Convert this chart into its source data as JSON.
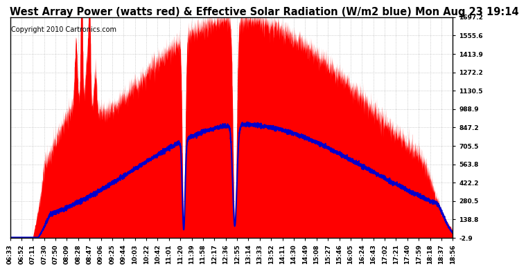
{
  "title": "West Array Power (watts red) & Effective Solar Radiation (W/m2 blue) Mon Aug 23 19:14",
  "copyright": "Copyright 2010 Cartronics.com",
  "background_color": "#ffffff",
  "plot_bg_color": "#ffffff",
  "grid_color": "#bbbbbb",
  "ylim": [
    -2.9,
    1697.2
  ],
  "yticks": [
    1697.2,
    1555.6,
    1413.9,
    1272.2,
    1130.5,
    988.9,
    847.2,
    705.5,
    563.8,
    422.2,
    280.5,
    138.8,
    -2.9
  ],
  "red_color": "#ff0000",
  "blue_color": "#0000cc",
  "title_fontsize": 10.5,
  "copyright_fontsize": 7,
  "tick_fontsize": 6.5,
  "xtick_labels": [
    "06:33",
    "06:52",
    "07:11",
    "07:30",
    "07:50",
    "08:09",
    "08:28",
    "08:47",
    "09:06",
    "09:25",
    "09:44",
    "10:03",
    "10:22",
    "10:42",
    "11:01",
    "11:20",
    "11:39",
    "11:58",
    "12:17",
    "12:36",
    "12:55",
    "13:14",
    "13:33",
    "13:52",
    "14:11",
    "14:30",
    "14:49",
    "15:08",
    "15:27",
    "15:46",
    "16:05",
    "16:24",
    "16:43",
    "17:02",
    "17:21",
    "17:40",
    "17:59",
    "18:18",
    "18:37",
    "18:56"
  ]
}
